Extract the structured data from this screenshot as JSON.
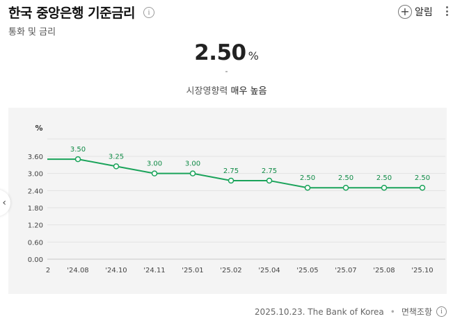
{
  "header": {
    "title": "한국 중앙은행 기준금리",
    "subtitle": "통화 및 금리",
    "info_glyph": "i",
    "alarm_label": "알림",
    "plus_glyph": "+"
  },
  "summary": {
    "value": "2.50",
    "unit": "%",
    "change": "-",
    "influence_label": "시장영향력",
    "influence_value": "매우 높음"
  },
  "nav": {
    "prev_glyph": "‹"
  },
  "footer": {
    "date_source": "2025.10.23. The Bank of Korea",
    "separator": "•",
    "disclaimer": "면책조항",
    "info_glyph": "i"
  },
  "colors": {
    "line": "#1aa35a",
    "grid": "#e2e2e2",
    "background": "#f4f4f4"
  },
  "chart_data": {
    "type": "line",
    "ylabel": "%",
    "ylim": [
      0,
      3.6
    ],
    "yticks": [
      "3.60",
      "3.00",
      "2.40",
      "1.80",
      "1.20",
      "0.60",
      "0.00"
    ],
    "ytick_values": [
      3.6,
      3.0,
      2.4,
      1.8,
      1.2,
      0.6,
      0.0
    ],
    "grid": "horizontal",
    "first_tick_label": "2",
    "categories": [
      "'24.08",
      "'24.10",
      "'24.11",
      "'25.01",
      "'25.02",
      "'25.04",
      "'25.05",
      "'25.07",
      "'25.08",
      "'25.10"
    ],
    "series": [
      {
        "values": [
          3.5,
          3.25,
          3.0,
          3.0,
          2.75,
          2.75,
          2.5,
          2.5,
          2.5,
          2.5
        ],
        "labels": [
          "3.50",
          "3.25",
          "3.00",
          "3.00",
          "2.75",
          "2.75",
          "2.50",
          "2.50",
          "2.50",
          "2.50"
        ]
      }
    ]
  }
}
